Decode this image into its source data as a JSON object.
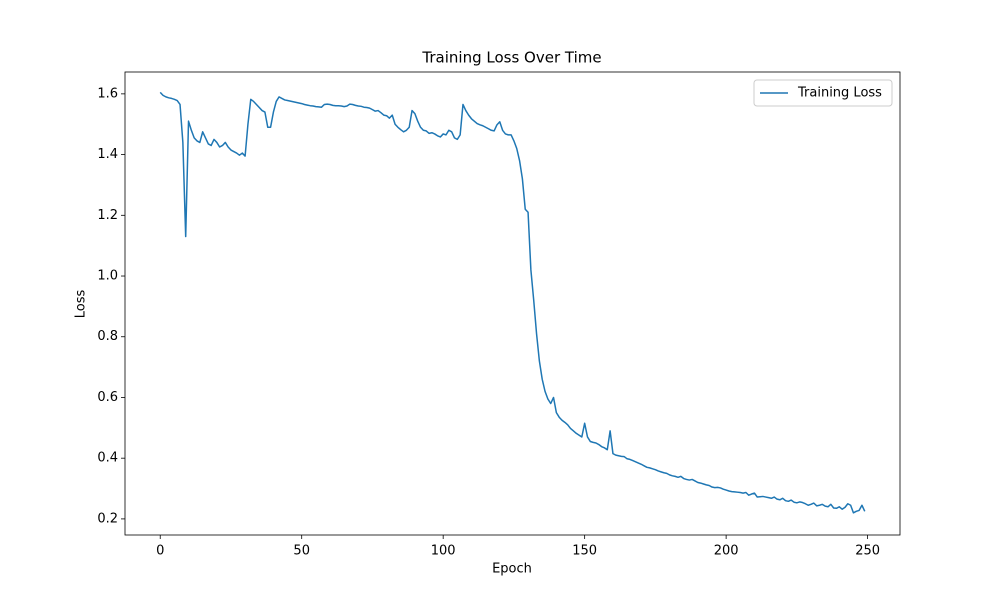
{
  "chart_data": {
    "type": "line",
    "title": "Training Loss Over Time",
    "xlabel": "Epoch",
    "ylabel": "Loss",
    "x": [
      0,
      1,
      2,
      3,
      4,
      5,
      6,
      7,
      8,
      9,
      10,
      11,
      12,
      13,
      14,
      15,
      16,
      17,
      18,
      19,
      20,
      21,
      22,
      23,
      24,
      25,
      26,
      27,
      28,
      29,
      30,
      31,
      32,
      33,
      34,
      35,
      36,
      37,
      38,
      39,
      40,
      41,
      42,
      43,
      44,
      45,
      46,
      47,
      48,
      49,
      50,
      51,
      52,
      53,
      54,
      55,
      56,
      57,
      58,
      59,
      60,
      61,
      62,
      63,
      64,
      65,
      66,
      67,
      68,
      69,
      70,
      71,
      72,
      73,
      74,
      75,
      76,
      77,
      78,
      79,
      80,
      81,
      82,
      83,
      84,
      85,
      86,
      87,
      88,
      89,
      90,
      91,
      92,
      93,
      94,
      95,
      96,
      97,
      98,
      99,
      100,
      101,
      102,
      103,
      104,
      105,
      106,
      107,
      108,
      109,
      110,
      111,
      112,
      113,
      114,
      115,
      116,
      117,
      118,
      119,
      120,
      121,
      122,
      123,
      124,
      125,
      126,
      127,
      128,
      129,
      130,
      131,
      132,
      133,
      134,
      135,
      136,
      137,
      138,
      139,
      140,
      141,
      142,
      143,
      144,
      145,
      146,
      147,
      148,
      149,
      150,
      151,
      152,
      153,
      154,
      155,
      156,
      157,
      158,
      159,
      160,
      161,
      162,
      163,
      164,
      165,
      166,
      167,
      168,
      169,
      170,
      171,
      172,
      173,
      174,
      175,
      176,
      177,
      178,
      179,
      180,
      181,
      182,
      183,
      184,
      185,
      186,
      187,
      188,
      189,
      190,
      191,
      192,
      193,
      194,
      195,
      196,
      197,
      198,
      199,
      200,
      201,
      202,
      203,
      204,
      205,
      206,
      207,
      208,
      209,
      210,
      211,
      212,
      213,
      214,
      215,
      216,
      217,
      218,
      219,
      220,
      221,
      222,
      223,
      224,
      225,
      226,
      227,
      228,
      229,
      230,
      231,
      232,
      233,
      234,
      235,
      236,
      237,
      238,
      239,
      240,
      241,
      242,
      243,
      244,
      245,
      246,
      247,
      248,
      249
    ],
    "series": [
      {
        "name": "Training Loss",
        "color": "#1f77b4",
        "values": [
          1.605,
          1.595,
          1.59,
          1.587,
          1.585,
          1.582,
          1.578,
          1.565,
          1.44,
          1.13,
          1.51,
          1.48,
          1.455,
          1.445,
          1.44,
          1.475,
          1.455,
          1.435,
          1.43,
          1.45,
          1.44,
          1.425,
          1.43,
          1.44,
          1.425,
          1.415,
          1.41,
          1.405,
          1.398,
          1.405,
          1.395,
          1.5,
          1.582,
          1.575,
          1.565,
          1.555,
          1.545,
          1.54,
          1.49,
          1.49,
          1.54,
          1.575,
          1.59,
          1.585,
          1.58,
          1.578,
          1.576,
          1.574,
          1.572,
          1.57,
          1.568,
          1.565,
          1.563,
          1.561,
          1.56,
          1.558,
          1.557,
          1.556,
          1.565,
          1.566,
          1.565,
          1.562,
          1.561,
          1.561,
          1.56,
          1.558,
          1.56,
          1.566,
          1.565,
          1.562,
          1.56,
          1.559,
          1.556,
          1.555,
          1.553,
          1.548,
          1.543,
          1.545,
          1.538,
          1.53,
          1.528,
          1.52,
          1.53,
          1.5,
          1.49,
          1.482,
          1.475,
          1.48,
          1.49,
          1.545,
          1.535,
          1.51,
          1.49,
          1.48,
          1.478,
          1.47,
          1.472,
          1.468,
          1.462,
          1.458,
          1.468,
          1.465,
          1.48,
          1.475,
          1.455,
          1.45,
          1.465,
          1.565,
          1.545,
          1.53,
          1.518,
          1.51,
          1.502,
          1.498,
          1.495,
          1.49,
          1.485,
          1.48,
          1.478,
          1.498,
          1.508,
          1.48,
          1.468,
          1.465,
          1.465,
          1.445,
          1.42,
          1.38,
          1.32,
          1.22,
          1.21,
          1.02,
          0.92,
          0.81,
          0.72,
          0.66,
          0.62,
          0.595,
          0.58,
          0.6,
          0.55,
          0.535,
          0.525,
          0.518,
          0.51,
          0.498,
          0.49,
          0.482,
          0.476,
          0.47,
          0.515,
          0.47,
          0.455,
          0.452,
          0.45,
          0.445,
          0.438,
          0.434,
          0.428,
          0.49,
          0.415,
          0.41,
          0.408,
          0.406,
          0.405,
          0.398,
          0.396,
          0.392,
          0.388,
          0.384,
          0.38,
          0.375,
          0.37,
          0.368,
          0.365,
          0.362,
          0.358,
          0.355,
          0.352,
          0.35,
          0.345,
          0.342,
          0.34,
          0.337,
          0.34,
          0.333,
          0.33,
          0.328,
          0.33,
          0.325,
          0.32,
          0.318,
          0.315,
          0.312,
          0.31,
          0.305,
          0.303,
          0.304,
          0.302,
          0.298,
          0.295,
          0.292,
          0.29,
          0.289,
          0.288,
          0.287,
          0.285,
          0.287,
          0.278,
          0.282,
          0.285,
          0.272,
          0.273,
          0.274,
          0.272,
          0.27,
          0.268,
          0.272,
          0.265,
          0.263,
          0.268,
          0.26,
          0.258,
          0.262,
          0.255,
          0.253,
          0.256,
          0.254,
          0.25,
          0.245,
          0.248,
          0.252,
          0.243,
          0.245,
          0.248,
          0.242,
          0.24,
          0.248,
          0.236,
          0.235,
          0.24,
          0.232,
          0.238,
          0.25,
          0.245,
          0.22,
          0.225,
          0.228,
          0.245,
          0.225
        ]
      }
    ],
    "xlim": [
      -12.45,
      261.45
    ],
    "xticks": [
      0,
      50,
      100,
      150,
      200,
      250
    ],
    "ylim": [
      0.147,
      1.672
    ],
    "yticks": [
      0.2,
      0.4,
      0.6,
      0.8,
      {
        "value": 1,
        "label": "1.0"
      },
      1.2,
      1.4,
      1.6
    ],
    "legend": "upper right"
  }
}
